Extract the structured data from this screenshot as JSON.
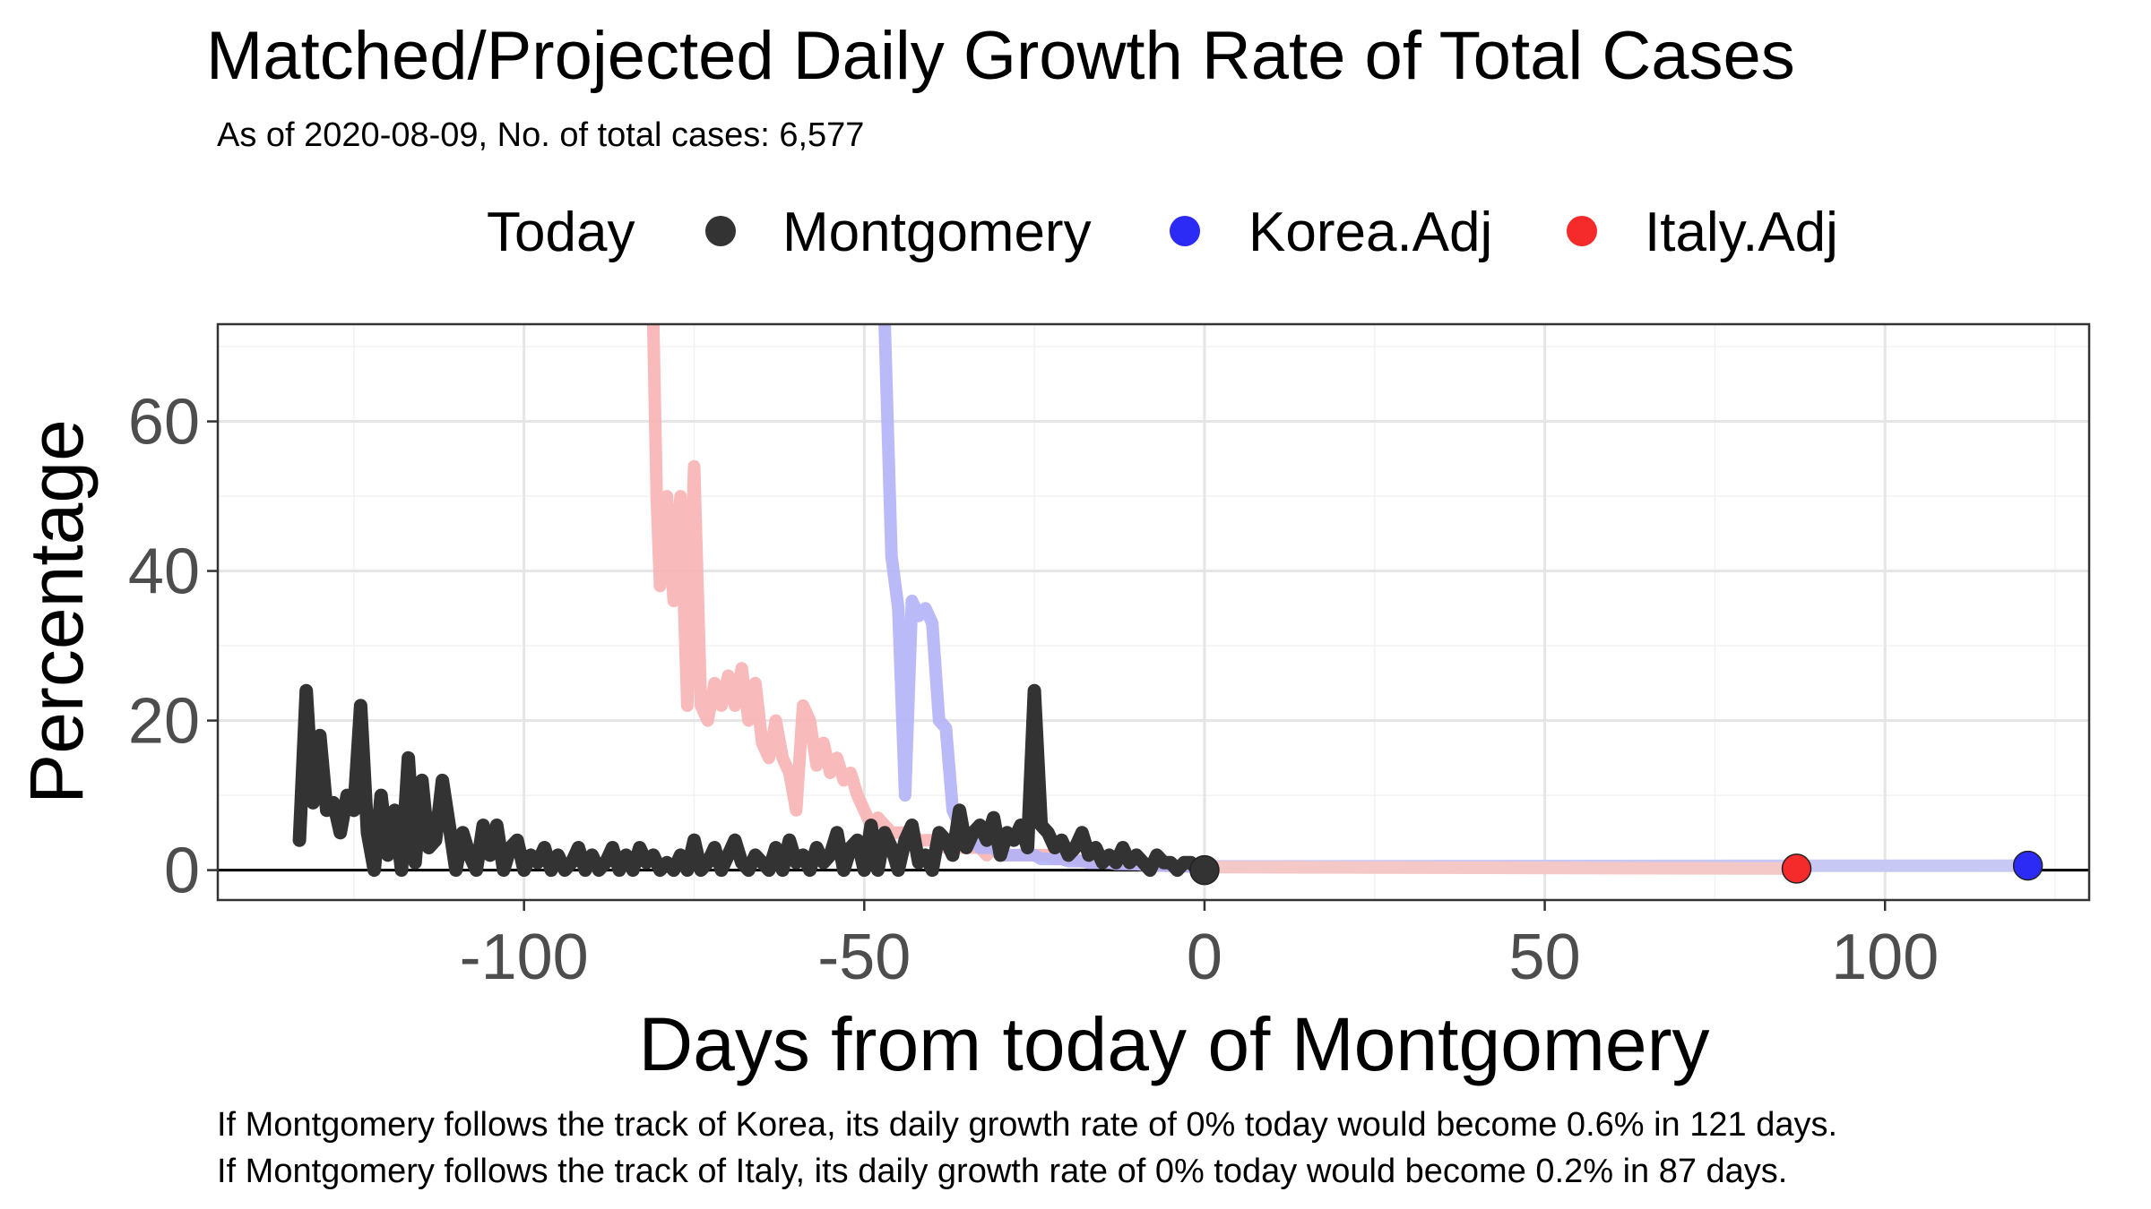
{
  "chart_data": {
    "type": "line",
    "title": "Matched/Projected Daily Growth Rate of Total Cases",
    "subtitle": "As of 2020-08-09, No. of total cases: 6,577",
    "xlabel": "Days from today of Montgomery",
    "ylabel": "Percentage",
    "xlim": [
      -145,
      130
    ],
    "ylim": [
      -4,
      73
    ],
    "xticks": [
      -100,
      -50,
      0,
      50,
      100
    ],
    "yticks": [
      0,
      20,
      40,
      60
    ],
    "grid": true,
    "legend": {
      "title": "Today",
      "placement": "top",
      "entries": [
        "Montgomery",
        "Korea.Adj",
        "Italy.Adj"
      ]
    },
    "colors": {
      "Montgomery": "#333333",
      "Korea.Adj": "#2b2bf5",
      "Italy.Adj": "#f52b2b",
      "Korea.Adj_history": "#b3b3f7",
      "Italy.Adj_history": "#f7b3b3",
      "Korea.Adj_projection": "#c8c8f5",
      "Italy.Adj_projection": "#f5c8c8"
    },
    "series": [
      {
        "name": "Montgomery",
        "x": [
          -133,
          -132,
          -131,
          -130,
          -129,
          -128,
          -127,
          -126,
          -125,
          -124,
          -123,
          -122,
          -121,
          -120,
          -119,
          -118,
          -117,
          -116,
          -115,
          -114,
          -113,
          -112,
          -111,
          -110,
          -109,
          -108,
          -107,
          -106,
          -105,
          -104,
          -103,
          -102,
          -101,
          -100,
          -99,
          -98,
          -97,
          -96,
          -95,
          -94,
          -93,
          -92,
          -91,
          -90,
          -89,
          -88,
          -87,
          -86,
          -85,
          -84,
          -83,
          -82,
          -81,
          -80,
          -79,
          -78,
          -77,
          -76,
          -75,
          -74,
          -73,
          -72,
          -71,
          -70,
          -69,
          -68,
          -67,
          -66,
          -65,
          -64,
          -63,
          -62,
          -61,
          -60,
          -59,
          -58,
          -57,
          -56,
          -55,
          -54,
          -53,
          -52,
          -51,
          -50,
          -49,
          -48,
          -47,
          -46,
          -45,
          -44,
          -43,
          -42,
          -41,
          -40,
          -39,
          -38,
          -37,
          -36,
          -35,
          -34,
          -33,
          -32,
          -31,
          -30,
          -29,
          -28,
          -27,
          -26,
          -25,
          -24,
          -23,
          -22,
          -21,
          -20,
          -19,
          -18,
          -17,
          -16,
          -15,
          -14,
          -13,
          -12,
          -11,
          -10,
          -9,
          -8,
          -7,
          -6,
          -5,
          -4,
          -3,
          -2,
          -1,
          0
        ],
        "y": [
          4,
          24,
          9,
          18,
          8,
          9,
          5,
          10,
          8,
          22,
          5,
          0,
          10,
          2,
          8,
          0,
          15,
          1,
          12,
          3,
          4,
          12,
          6,
          0,
          5,
          2,
          0,
          6,
          2,
          6,
          0,
          3,
          4,
          0,
          2,
          1,
          3,
          0,
          2,
          0,
          1,
          3,
          0,
          2,
          0,
          1,
          3,
          0,
          2,
          0,
          3,
          1,
          2,
          0,
          1,
          0,
          2,
          0,
          4,
          0,
          1,
          3,
          0,
          2,
          4,
          1,
          0,
          2,
          1,
          0,
          3,
          0,
          4,
          1,
          2,
          0,
          3,
          1,
          2,
          5,
          0,
          3,
          4,
          0,
          6,
          0,
          5,
          3,
          0,
          4,
          6,
          1,
          2,
          0,
          5,
          4,
          2,
          8,
          3,
          5,
          6,
          4,
          7,
          2,
          5,
          4,
          6,
          3,
          24,
          6,
          5,
          3,
          4,
          2,
          3,
          5,
          2,
          3,
          1,
          2,
          1,
          3,
          1,
          2,
          1,
          0,
          2,
          1,
          1,
          0,
          1,
          1,
          0,
          0
        ]
      },
      {
        "name": "Korea.Adj history",
        "x": [
          -47,
          -46,
          -45,
          -44,
          -43,
          -42,
          -41,
          -40,
          -39,
          -38,
          -37,
          -36,
          -35,
          -34,
          -33,
          -32,
          -31,
          -30,
          -29,
          -28,
          -27,
          -26,
          -25,
          -24,
          -23,
          -22,
          -21,
          -20,
          -19,
          -18,
          -17,
          -16,
          -15,
          -14,
          -13,
          -12,
          -11,
          -10,
          -9,
          -8,
          -7,
          -6,
          -5,
          -4,
          -3,
          -2,
          -1,
          0
        ],
        "y": [
          73,
          42,
          35,
          10,
          36,
          34,
          35,
          33,
          20,
          19,
          8,
          6,
          5,
          4,
          3,
          3,
          3,
          2,
          2,
          2,
          2,
          2,
          2,
          1.5,
          1.5,
          1.5,
          1.5,
          1.2,
          1.2,
          1.2,
          1.0,
          1.0,
          1.0,
          1.0,
          0.8,
          0.8,
          0.8,
          0.8,
          0.7,
          0.7,
          0.7,
          0.6,
          0.6,
          0.6,
          0.5,
          0.5,
          0.5,
          0.5
        ]
      },
      {
        "name": "Italy.Adj history",
        "x": [
          -81,
          -80.5,
          -80,
          -79,
          -78,
          -77,
          -76,
          -75,
          -74,
          -73,
          -72,
          -71,
          -70,
          -69,
          -68,
          -67,
          -66,
          -65,
          -64,
          -63,
          -62,
          -61,
          -60,
          -59,
          -58,
          -57,
          -56,
          -55,
          -54,
          -53,
          -52,
          -51,
          -50,
          -49,
          -48,
          -47,
          -46,
          -45,
          -44,
          -43,
          -42,
          -41,
          -40,
          -39,
          -38,
          -37,
          -36,
          -35,
          -34,
          -33,
          -32,
          -31,
          -30,
          -29,
          -28,
          -27,
          -26,
          -25,
          -24,
          -23,
          -22,
          -21,
          -20,
          -19,
          -18,
          -17,
          -16,
          -15,
          -14,
          -13,
          -12,
          -11,
          -10,
          -9,
          -8,
          -7,
          -6,
          -5,
          -4,
          -3,
          -2,
          -1,
          0
        ],
        "y": [
          73,
          50,
          38,
          50,
          36,
          50,
          22,
          54,
          22,
          20,
          25,
          22,
          26,
          22,
          27,
          20,
          25,
          17,
          15,
          20,
          15,
          13,
          8,
          22,
          20,
          14,
          17,
          13,
          15,
          12,
          13,
          10,
          8,
          6,
          7,
          6,
          5,
          5,
          5,
          5,
          4,
          4,
          4,
          4,
          3,
          3,
          3,
          3,
          3,
          3,
          2,
          3,
          2,
          2,
          2,
          2,
          2,
          2,
          2,
          2,
          1.5,
          1.5,
          1.5,
          1.5,
          1.2,
          1.2,
          1.2,
          1.0,
          1.0,
          1.0,
          1.0,
          0.8,
          0.8,
          0.8,
          0.7,
          0.7,
          0.6,
          0.6,
          0.6,
          0.5,
          0.5,
          0.5,
          0.4
        ]
      },
      {
        "name": "Korea.Adj projection",
        "x": [
          0,
          121
        ],
        "y": [
          0.5,
          0.6
        ]
      },
      {
        "name": "Italy.Adj projection",
        "x": [
          0,
          87
        ],
        "y": [
          0.4,
          0.2
        ]
      }
    ],
    "today_points": [
      {
        "name": "Montgomery",
        "x": 0,
        "y": 0
      },
      {
        "name": "Korea.Adj",
        "x": 121,
        "y": 0.6
      },
      {
        "name": "Italy.Adj",
        "x": 87,
        "y": 0.2
      }
    ],
    "caption": [
      "If Montgomery follows the track of Korea, its daily growth rate of 0% today would become 0.6% in 121 days.",
      "If Montgomery follows the track of Italy, its daily growth rate of 0% today would become 0.2% in 87 days."
    ]
  }
}
